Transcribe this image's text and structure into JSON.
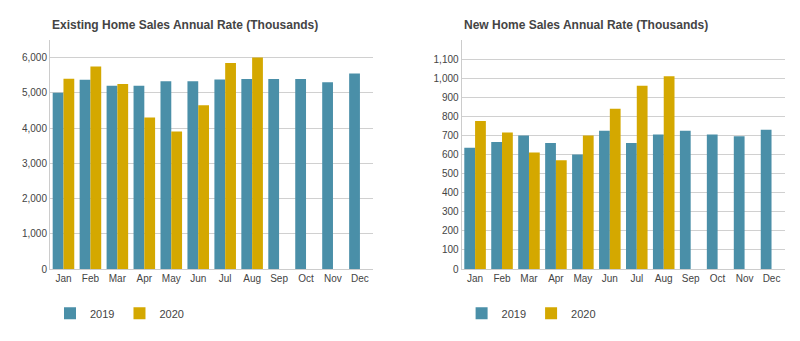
{
  "chart_data": [
    {
      "type": "bar",
      "title": "Existing Home Sales Annual Rate (Thousands)",
      "categories": [
        "Jan",
        "Feb",
        "Mar",
        "Apr",
        "May",
        "Jun",
        "Jul",
        "Aug",
        "Sep",
        "Oct",
        "Nov",
        "Dec"
      ],
      "series": [
        {
          "name": "2019",
          "color": "#4a8fa8",
          "values": [
            5000,
            5370,
            5200,
            5200,
            5330,
            5330,
            5380,
            5390,
            5390,
            5390,
            5300,
            5550
          ]
        },
        {
          "name": "2020",
          "color": "#d4a800",
          "values": [
            5400,
            5750,
            5250,
            4300,
            3900,
            4650,
            5850,
            6000,
            null,
            null,
            null,
            null
          ]
        }
      ],
      "ylim": [
        0,
        6500
      ],
      "yticks": [
        0,
        {
          "value": 1000,
          "label": "1,000"
        },
        {
          "value": 2000,
          "label": "2,000"
        },
        {
          "value": 3000,
          "label": "3,000"
        },
        {
          "value": 4000,
          "label": "4,000"
        },
        {
          "value": 5000,
          "label": "5,000"
        },
        {
          "value": 6000,
          "label": "6,000"
        }
      ],
      "grid": true,
      "legend": "bottom"
    },
    {
      "type": "bar",
      "title": "New Home Sales Annual Rate (Thousands)",
      "categories": [
        "Jan",
        "Feb",
        "Mar",
        "Apr",
        "May",
        "Jun",
        "Jul",
        "Aug",
        "Sep",
        "Oct",
        "Nov",
        "Dec"
      ],
      "series": [
        {
          "name": "2019",
          "color": "#4a8fa8",
          "values": [
            635,
            665,
            700,
            660,
            600,
            725,
            660,
            705,
            725,
            705,
            695,
            730
          ]
        },
        {
          "name": "2020",
          "color": "#d4a800",
          "values": [
            775,
            715,
            610,
            570,
            700,
            840,
            960,
            1010,
            null,
            null,
            null,
            null
          ]
        }
      ],
      "ylim": [
        0,
        1200
      ],
      "yticks": [
        0,
        100,
        200,
        300,
        400,
        500,
        600,
        700,
        800,
        900,
        {
          "value": 1000,
          "label": "1,000"
        },
        {
          "value": 1100,
          "label": "1,100"
        }
      ],
      "grid": true,
      "legend": "bottom"
    }
  ]
}
